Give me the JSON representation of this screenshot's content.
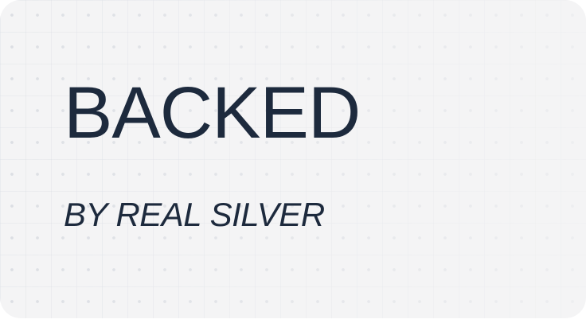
{
  "card": {
    "headline": "BACKED",
    "subline": "BY REAL SILVER",
    "colors": {
      "background": "#f4f4f5",
      "text": "#1d2a3d"
    }
  }
}
